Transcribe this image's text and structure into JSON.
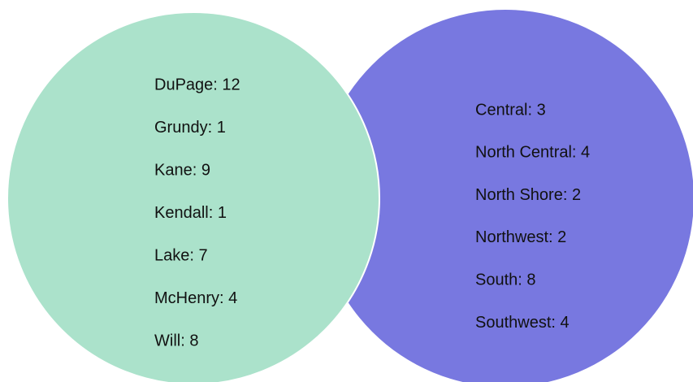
{
  "left": {
    "items": [
      "DuPage: 12",
      "Grundy: 1",
      "Kane: 9",
      "Kendall: 1",
      "Lake: 7",
      "McHenry: 4",
      "Will: 8"
    ]
  },
  "right": {
    "items": [
      "Central: 3",
      "North Central: 4",
      "North Shore: 2",
      "Northwest: 2",
      "South: 8",
      "Southwest: 4"
    ]
  }
}
